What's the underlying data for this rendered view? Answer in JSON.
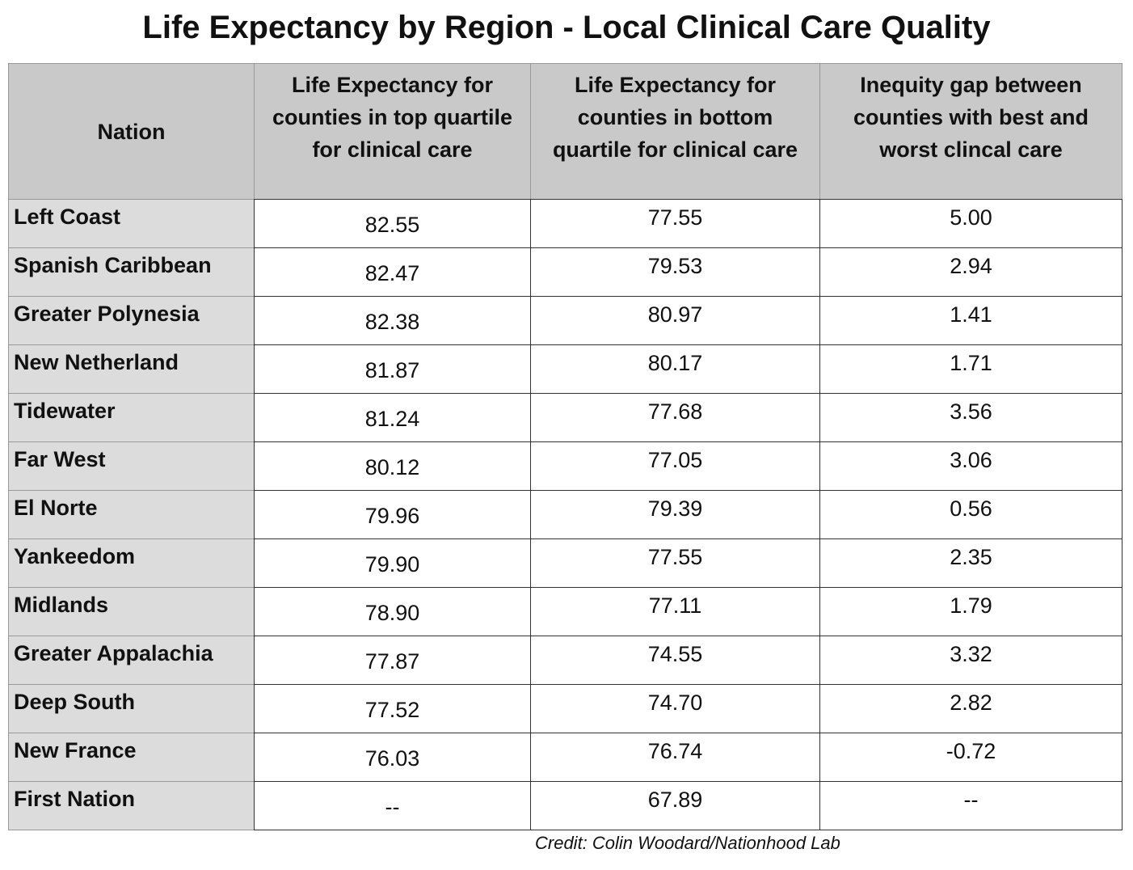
{
  "title": "Life Expectancy by Region - Local Clinical Care Quality",
  "table": {
    "header": [
      [
        "Nation"
      ],
      [
        "Life Expectancy for",
        "counties in top quartile",
        "for clinical care"
      ],
      [
        "Life Expectancy for",
        "counties in bottom",
        "quartile for clinical care"
      ],
      [
        "Inequity gap between",
        "counties with best and",
        "worst clincal care"
      ]
    ],
    "rows": [
      [
        "Left Coast",
        "82.55",
        "77.55",
        "5.00"
      ],
      [
        "Spanish Caribbean",
        "82.47",
        "79.53",
        "2.94"
      ],
      [
        "Greater Polynesia",
        "82.38",
        "80.97",
        "1.41"
      ],
      [
        "New Netherland",
        "81.87",
        "80.17",
        "1.71"
      ],
      [
        "Tidewater",
        "81.24",
        "77.68",
        "3.56"
      ],
      [
        "Far West",
        "80.12",
        "77.05",
        "3.06"
      ],
      [
        "El Norte",
        "79.96",
        "79.39",
        "0.56"
      ],
      [
        "Yankeedom",
        "79.90",
        "77.55",
        "2.35"
      ],
      [
        "Midlands",
        "78.90",
        "77.11",
        "1.79"
      ],
      [
        "Greater Appalachia",
        "77.87",
        "74.55",
        "3.32"
      ],
      [
        "Deep South",
        "77.52",
        "74.70",
        "2.82"
      ],
      [
        "New France",
        "76.03",
        "76.74",
        "-0.72"
      ],
      [
        "First Nation",
        "--",
        "67.89",
        "--"
      ]
    ]
  },
  "credit": "Credit: Colin Woodard/Nationhood Lab"
}
